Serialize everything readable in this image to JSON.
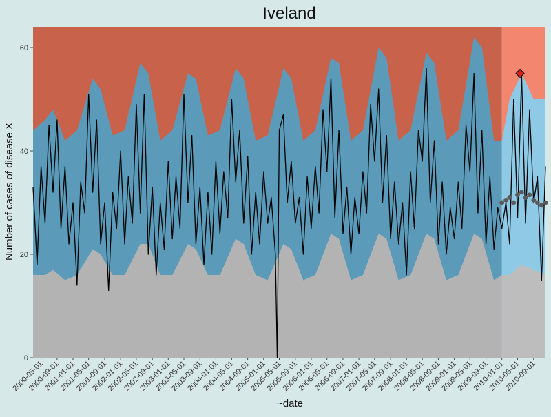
{
  "chart_data": {
    "type": "area",
    "title": "Iveland",
    "xlabel": "~date",
    "ylabel": "Number of cases of disease X",
    "x_range": [
      "2000-03-01",
      "2010-12-01"
    ],
    "ylim": [
      0,
      64
    ],
    "y_ticks": [
      0,
      20,
      40,
      60
    ],
    "x_ticks": [
      "2000-05-01",
      "2000-09-01",
      "2001-01-01",
      "2001-05-01",
      "2001-09-01",
      "2002-01-01",
      "2002-05-01",
      "2002-09-01",
      "2003-01-01",
      "2003-05-01",
      "2003-09-01",
      "2004-01-01",
      "2004-05-01",
      "2004-09-01",
      "2005-01-01",
      "2005-05-01",
      "2005-09-01",
      "2006-01-01",
      "2006-05-01",
      "2006-09-01",
      "2007-01-01",
      "2007-05-01",
      "2007-09-01",
      "2008-01-01",
      "2008-05-01",
      "2008-09-01",
      "2009-01-01",
      "2009-05-01",
      "2009-09-01",
      "2010-01-01",
      "2010-05-01",
      "2010-09-01"
    ],
    "grid": false,
    "legend": "none",
    "zones": {
      "training_end": "2010-01-01",
      "colors": {
        "low_training": "#b3b3b3",
        "normal_training": "#5b9ab8",
        "high_training": "#c9624a",
        "low_prediction": "#bdbdbd",
        "normal_prediction": "#8ecae6",
        "high_prediction": "#f2866e"
      }
    },
    "series": [
      {
        "kind": "band_upper",
        "x": [
          "2000-03-01",
          "2000-06-01",
          "2000-08-01",
          "2000-11-01",
          "2001-02-01",
          "2001-06-01",
          "2001-08-01",
          "2001-11-01",
          "2002-02-01",
          "2002-06-01",
          "2002-08-01",
          "2002-11-01",
          "2003-02-01",
          "2003-06-01",
          "2003-08-01",
          "2003-11-01",
          "2004-02-01",
          "2004-06-01",
          "2004-08-01",
          "2004-11-01",
          "2005-02-01",
          "2005-06-01",
          "2005-08-01",
          "2005-11-01",
          "2006-02-01",
          "2006-06-01",
          "2006-08-01",
          "2006-11-01",
          "2007-02-01",
          "2007-06-01",
          "2007-08-01",
          "2007-11-01",
          "2008-02-01",
          "2008-06-01",
          "2008-08-01",
          "2008-11-01",
          "2009-02-01",
          "2009-06-01",
          "2009-08-01",
          "2009-11-01",
          "2010-01-01",
          "2010-03-01",
          "2010-06-01",
          "2010-09-01",
          "2010-12-01"
        ],
        "values": [
          44,
          46,
          48,
          42,
          44,
          54,
          52,
          43,
          44,
          57,
          55,
          42,
          44,
          55,
          54,
          43,
          44,
          56,
          54,
          42,
          43,
          56,
          54,
          42,
          44,
          58,
          57,
          42,
          44,
          60,
          58,
          42,
          44,
          59,
          57,
          42,
          44,
          62,
          60,
          42,
          42,
          50,
          55,
          50,
          50
        ]
      },
      {
        "kind": "band_lower",
        "x": [
          "2000-03-01",
          "2000-06-01",
          "2000-08-01",
          "2000-11-01",
          "2001-02-01",
          "2001-06-01",
          "2001-08-01",
          "2001-11-01",
          "2002-02-01",
          "2002-06-01",
          "2002-08-01",
          "2002-11-01",
          "2003-02-01",
          "2003-06-01",
          "2003-08-01",
          "2003-11-01",
          "2004-02-01",
          "2004-06-01",
          "2004-08-01",
          "2004-11-01",
          "2005-02-01",
          "2005-06-01",
          "2005-08-01",
          "2005-11-01",
          "2006-02-01",
          "2006-06-01",
          "2006-08-01",
          "2006-11-01",
          "2007-02-01",
          "2007-06-01",
          "2007-08-01",
          "2007-11-01",
          "2008-02-01",
          "2008-06-01",
          "2008-08-01",
          "2008-11-01",
          "2009-02-01",
          "2009-06-01",
          "2009-08-01",
          "2009-11-01",
          "2010-01-01",
          "2010-03-01",
          "2010-06-01",
          "2010-09-01",
          "2010-12-01"
        ],
        "values": [
          16,
          16,
          17,
          15,
          16,
          21,
          20,
          16,
          16,
          22,
          22,
          16,
          16,
          22,
          21,
          16,
          16,
          23,
          22,
          16,
          15,
          22,
          21,
          15,
          16,
          24,
          23,
          15,
          16,
          24,
          23,
          15,
          16,
          24,
          23,
          15,
          16,
          24,
          23,
          15,
          16,
          16,
          18,
          17,
          16
        ]
      },
      {
        "kind": "observed",
        "x": [
          "2000-03-01",
          "2000-04-01",
          "2000-05-01",
          "2000-06-01",
          "2000-07-01",
          "2000-08-01",
          "2000-09-01",
          "2000-10-01",
          "2000-11-01",
          "2000-12-01",
          "2001-01-01",
          "2001-02-01",
          "2001-03-01",
          "2001-04-01",
          "2001-05-01",
          "2001-06-01",
          "2001-07-01",
          "2001-08-01",
          "2001-09-01",
          "2001-10-01",
          "2001-11-01",
          "2001-12-01",
          "2002-01-01",
          "2002-02-01",
          "2002-03-01",
          "2002-04-01",
          "2002-05-01",
          "2002-06-01",
          "2002-07-01",
          "2002-08-01",
          "2002-09-01",
          "2002-10-01",
          "2002-11-01",
          "2002-12-01",
          "2003-01-01",
          "2003-02-01",
          "2003-03-01",
          "2003-04-01",
          "2003-05-01",
          "2003-06-01",
          "2003-07-01",
          "2003-08-01",
          "2003-09-01",
          "2003-10-01",
          "2003-11-01",
          "2003-12-01",
          "2004-01-01",
          "2004-02-01",
          "2004-03-01",
          "2004-04-01",
          "2004-05-01",
          "2004-06-01",
          "2004-07-01",
          "2004-08-01",
          "2004-09-01",
          "2004-10-01",
          "2004-11-01",
          "2004-12-01",
          "2005-01-01",
          "2005-02-01",
          "2005-03-01",
          "2005-04-01",
          "2005-04-15",
          "2005-05-01",
          "2005-06-01",
          "2005-07-01",
          "2005-08-01",
          "2005-09-01",
          "2005-10-01",
          "2005-11-01",
          "2005-12-01",
          "2006-01-01",
          "2006-02-01",
          "2006-03-01",
          "2006-04-01",
          "2006-05-01",
          "2006-06-01",
          "2006-07-01",
          "2006-08-01",
          "2006-09-01",
          "2006-10-01",
          "2006-11-01",
          "2006-12-01",
          "2007-01-01",
          "2007-02-01",
          "2007-03-01",
          "2007-04-01",
          "2007-05-01",
          "2007-06-01",
          "2007-07-01",
          "2007-08-01",
          "2007-09-01",
          "2007-10-01",
          "2007-11-01",
          "2007-12-01",
          "2008-01-01",
          "2008-02-01",
          "2008-03-01",
          "2008-04-01",
          "2008-05-01",
          "2008-06-01",
          "2008-07-01",
          "2008-08-01",
          "2008-09-01",
          "2008-10-01",
          "2008-11-01",
          "2008-12-01",
          "2009-01-01",
          "2009-02-01",
          "2009-03-01",
          "2009-04-01",
          "2009-05-01",
          "2009-06-01",
          "2009-07-01",
          "2009-08-01",
          "2009-09-01",
          "2009-10-01",
          "2009-11-01",
          "2009-12-01",
          "2010-01-01",
          "2010-02-01",
          "2010-03-01",
          "2010-04-01",
          "2010-05-01",
          "2010-06-01",
          "2010-07-01",
          "2010-08-01",
          "2010-09-01",
          "2010-10-01",
          "2010-11-01",
          "2010-12-01"
        ],
        "values": [
          33,
          18,
          37,
          26,
          45,
          32,
          46,
          25,
          37,
          22,
          30,
          14,
          34,
          28,
          51,
          32,
          46,
          22,
          30,
          13,
          32,
          25,
          40,
          22,
          35,
          26,
          49,
          28,
          51,
          20,
          33,
          16,
          30,
          21,
          38,
          23,
          35,
          25,
          51,
          30,
          43,
          22,
          33,
          18,
          32,
          20,
          38,
          24,
          36,
          27,
          50,
          34,
          44,
          26,
          39,
          20,
          32,
          22,
          36,
          26,
          31,
          20,
          0,
          44,
          47,
          30,
          38,
          26,
          31,
          20,
          35,
          25,
          37,
          28,
          48,
          36,
          54,
          27,
          44,
          24,
          33,
          20,
          31,
          24,
          36,
          28,
          49,
          38,
          52,
          30,
          43,
          23,
          34,
          22,
          30,
          16,
          36,
          25,
          44,
          38,
          56,
          30,
          42,
          22,
          34,
          20,
          29,
          23,
          34,
          25,
          45,
          36,
          55,
          28,
          44,
          22,
          35,
          21,
          29,
          25,
          30,
          22,
          50,
          27,
          55,
          26,
          48,
          30,
          35,
          15,
          37
        ]
      },
      {
        "kind": "forecast",
        "x": [
          "2010-01-01",
          "2010-02-01",
          "2010-03-01",
          "2010-04-01",
          "2010-05-01",
          "2010-06-01",
          "2010-07-01",
          "2010-08-01",
          "2010-09-01",
          "2010-10-01",
          "2010-11-01",
          "2010-12-01"
        ],
        "values": [
          30,
          30.5,
          31,
          30,
          31.5,
          32,
          31,
          31.5,
          30.5,
          30,
          29.5,
          30
        ]
      }
    ],
    "highlight": {
      "date": "2010-05-20",
      "value": 55,
      "color": "#e02020"
    }
  }
}
